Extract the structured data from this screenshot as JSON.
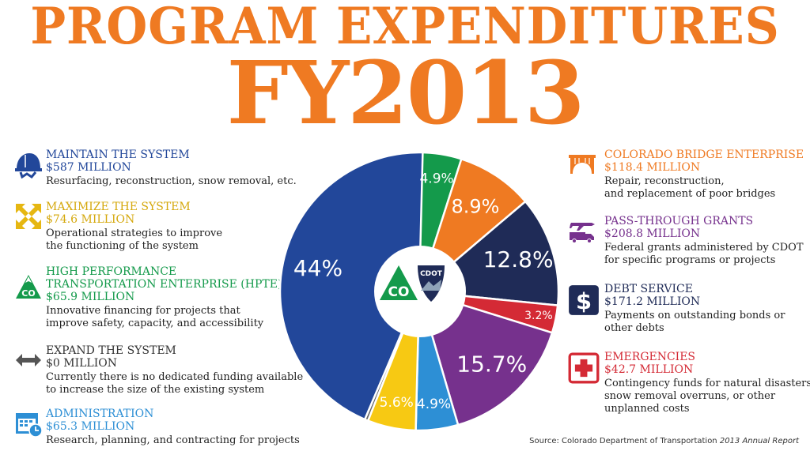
{
  "title_line1": "PROGRAM EXPENDITURES",
  "title_line2": "FY2013",
  "colors": {
    "title": "#ef7a22",
    "maintain": "#22479a",
    "maximize": "#e6b712",
    "hpte": "#149a4b",
    "expand": "#555555",
    "administration": "#2d8fd5",
    "bridge": "#ef7a22",
    "passthrough": "#76318d",
    "debt": "#1f2b57",
    "emergencies": "#d42a35"
  },
  "left_legend": [
    {
      "key": "maintain",
      "icon": "hard-hat-icon",
      "name": "MAINTAIN THE SYSTEM",
      "amount": "$587 MILLION",
      "desc": [
        "Resurfacing, reconstruction, snow removal, etc."
      ]
    },
    {
      "key": "maximize",
      "icon": "expand-arrows-icon",
      "name": "MAXIMIZE THE SYSTEM",
      "amount": "$74.6 MILLION",
      "desc": [
        "Operational strategies to improve",
        "the functioning of the system"
      ]
    },
    {
      "key": "hpte",
      "icon": "co-mountain-icon",
      "name": "HIGH PERFORMANCE",
      "name2": "TRANSPORTATION ENTERPRISE (HPTE)",
      "amount": "$65.9 MILLION",
      "desc": [
        "Innovative financing for projects that",
        "improve safety, capacity, and accessibility"
      ]
    },
    {
      "key": "expand",
      "icon": "double-arrow-icon",
      "name": "EXPAND THE SYSTEM",
      "amount": "$0 MILLION",
      "desc": [
        "Currently there is no dedicated funding available",
        "to increase the size of the existing system"
      ]
    },
    {
      "key": "administration",
      "icon": "calendar-clock-icon",
      "name": "ADMINISTRATION",
      "amount": "$65.3 MILLION",
      "desc": [
        "Research, planning, and contracting for projects"
      ]
    }
  ],
  "right_legend": [
    {
      "key": "bridge",
      "icon": "bridge-icon",
      "name": "COLORADO BRIDGE ENTERPRISE",
      "amount": "$118.4 MILLION",
      "desc": [
        "Repair, reconstruction,",
        "and replacement of poor bridges"
      ]
    },
    {
      "key": "passthrough",
      "icon": "plane-truck-icon",
      "name": "PASS-THROUGH GRANTS",
      "amount": "$208.8 MILLION",
      "desc": [
        "Federal grants administered by CDOT",
        "for specific programs or projects"
      ]
    },
    {
      "key": "debt",
      "icon": "dollar-sign-icon",
      "name": "DEBT SERVICE",
      "amount": "$171.2 MILLION",
      "desc": [
        "Payments on outstanding bonds or",
        "other debts"
      ]
    },
    {
      "key": "emergencies",
      "icon": "medical-cross-icon",
      "name": "EMERGENCIES",
      "amount": "$42.7 MILLION",
      "desc": [
        "Contingency funds for natural disasters,",
        "snow removal overruns, or other",
        "unplanned costs"
      ]
    }
  ],
  "center_logo": {
    "text_co": "CO",
    "text_cdot": "CDOT"
  },
  "source": {
    "prefix": "Source: Colorado Department of Transportation ",
    "report": "2013 Annual Report"
  },
  "chart_data": {
    "type": "pie",
    "title": "PROGRAM EXPENDITURES FY2013",
    "slices": [
      {
        "category": "HPTE",
        "value": 4.9,
        "label": "4.9%",
        "color": "#149a4b"
      },
      {
        "category": "Colorado Bridge Enterprise",
        "value": 8.9,
        "label": "8.9%",
        "color": "#ef7a22"
      },
      {
        "category": "Debt Service",
        "value": 12.8,
        "label": "12.8%",
        "color": "#1f2b57"
      },
      {
        "category": "Emergencies",
        "value": 3.2,
        "label": "3.2%",
        "color": "#d42a35"
      },
      {
        "category": "Pass-Through Grants",
        "value": 15.7,
        "label": "15.7%",
        "color": "#76318d"
      },
      {
        "category": "Administration",
        "value": 4.9,
        "label": "4.9%",
        "color": "#2d8fd5"
      },
      {
        "category": "Maximize the System",
        "value": 5.6,
        "label": "5.6%",
        "color": "#f7c913"
      },
      {
        "category": "Expand the System",
        "value": 0,
        "label": "0%",
        "color": "#666666"
      },
      {
        "category": "Maintain the System",
        "value": 44,
        "label": "44%",
        "color": "#22479a"
      }
    ],
    "units": "percent of total program expenditures",
    "hole": true
  }
}
